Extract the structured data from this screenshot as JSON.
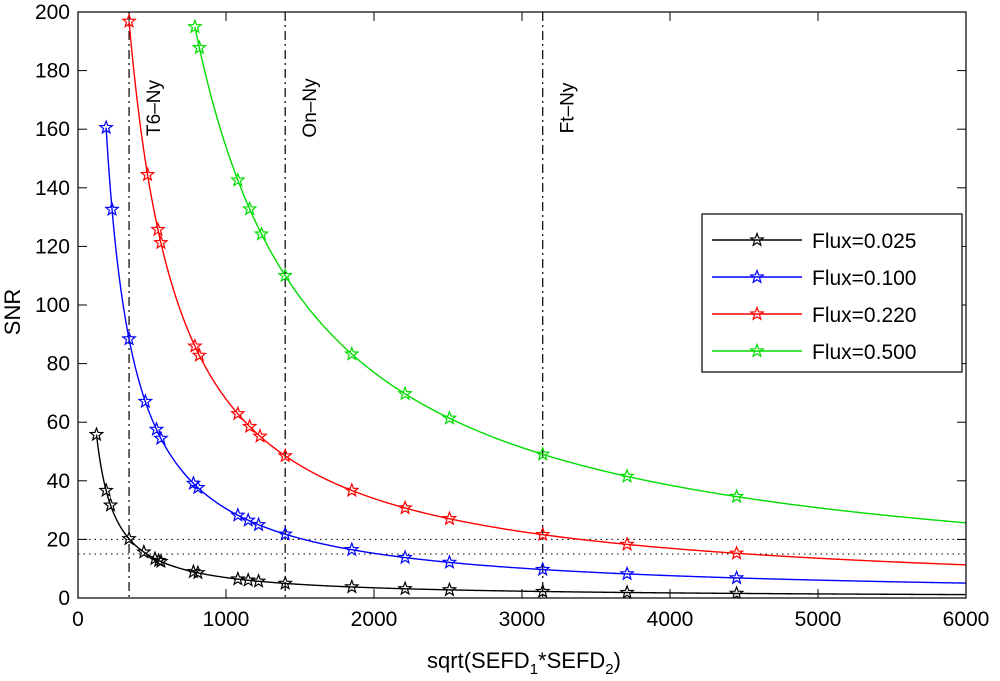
{
  "chart_data": {
    "type": "line",
    "xlabel": "sqrt(SEFD",
    "xlabel_sub1": "1",
    "xlabel_mid": "*SEFD",
    "xlabel_sub2": "2",
    "xlabel_end": ")",
    "ylabel": "SNR",
    "xlim": [
      0,
      6000
    ],
    "ylim": [
      0,
      200
    ],
    "xticks": [
      0,
      1000,
      2000,
      3000,
      4000,
      5000,
      6000
    ],
    "yticks": [
      0,
      20,
      40,
      60,
      80,
      100,
      120,
      140,
      160,
      180,
      200
    ],
    "xtick_labels": [
      "0",
      "1000",
      "2000",
      "3000",
      "4000",
      "5000",
      "6000"
    ],
    "ytick_labels": [
      "0",
      "20",
      "40",
      "60",
      "80",
      "100",
      "120",
      "140",
      "160",
      "180",
      "200"
    ],
    "hlines": [
      15,
      20
    ],
    "vlines": [
      {
        "x": 345,
        "label": "T6–Ny"
      },
      {
        "x": 1400,
        "label": "On–Ny"
      },
      {
        "x": 3140,
        "label": "Ft–Ny"
      }
    ],
    "series": [
      {
        "name": "Flux=0.025",
        "color": "#000000",
        "k": 6970,
        "markers": [
          125,
          190,
          220,
          345,
          445,
          520,
          545,
          560,
          780,
          810,
          1080,
          1150,
          1220,
          1400,
          1850,
          2210,
          2510,
          3140,
          3710,
          4450
        ]
      },
      {
        "name": "Flux=0.100",
        "color": "#0000ff",
        "k": 30500,
        "markers": [
          190,
          230,
          345,
          455,
          530,
          560,
          780,
          810,
          1080,
          1150,
          1220,
          1400,
          1850,
          2210,
          2510,
          3140,
          3710,
          4450
        ]
      },
      {
        "name": "Flux=0.220",
        "color": "#ff0000",
        "k": 67900,
        "markers": [
          345,
          470,
          540,
          560,
          790,
          820,
          1080,
          1160,
          1230,
          1400,
          1850,
          2210,
          2510,
          3140,
          3710,
          4450
        ]
      },
      {
        "name": "Flux=0.500",
        "color": "#00dd00",
        "k": 154000,
        "markers": [
          790,
          820,
          1080,
          1160,
          1240,
          1400,
          1850,
          2210,
          2510,
          3140,
          3710,
          4450
        ]
      }
    ],
    "legend_position": "right-center"
  }
}
